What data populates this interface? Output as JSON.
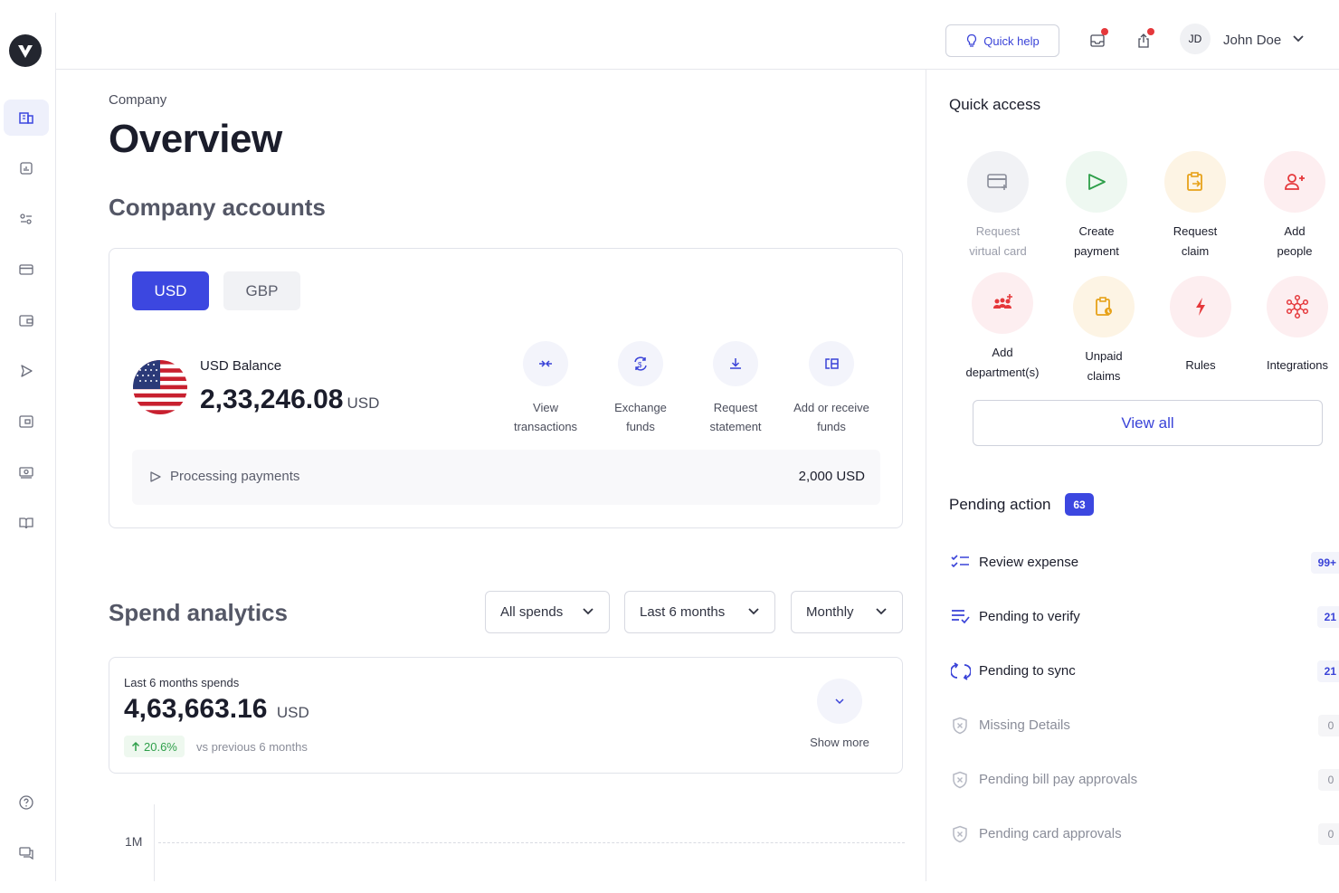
{
  "topbar": {
    "quick_help_label": "Quick help",
    "user_initials": "JD",
    "user_name": "John Doe",
    "notification_color": "#e5383b"
  },
  "sidebar": {
    "items": [
      {
        "name": "company",
        "icon": "building-icon",
        "active": true
      },
      {
        "name": "analytics",
        "icon": "chart-icon"
      },
      {
        "name": "controls",
        "icon": "sliders-icon"
      },
      {
        "name": "cards",
        "icon": "card-icon"
      },
      {
        "name": "wallet",
        "icon": "wallet-icon"
      },
      {
        "name": "payments",
        "icon": "send-icon"
      },
      {
        "name": "accounts",
        "icon": "wallet-alt-icon"
      },
      {
        "name": "cash",
        "icon": "cash-icon"
      },
      {
        "name": "docs",
        "icon": "book-icon"
      }
    ],
    "bottom": [
      {
        "name": "help",
        "icon": "help-icon"
      },
      {
        "name": "chat",
        "icon": "chat-icon"
      }
    ]
  },
  "main": {
    "breadcrumb": "Company",
    "title": "Overview",
    "accounts_title": "Company accounts",
    "currency_tabs": [
      "USD",
      "GBP"
    ],
    "balance_label": "USD Balance",
    "balance_amount": "2,33,246.08",
    "balance_currency": "USD",
    "actions": [
      {
        "line1": "View",
        "line2": "transactions",
        "icon": "arrows-in-icon"
      },
      {
        "line1": "Exchange",
        "line2": "funds",
        "icon": "exchange-icon"
      },
      {
        "line1": "Request",
        "line2": "statement",
        "icon": "download-icon"
      },
      {
        "line1": "Add or receive",
        "line2": "funds",
        "icon": "add-funds-icon"
      }
    ],
    "processing_label": "Processing payments",
    "processing_amount": "2,000 USD",
    "spend_title": "Spend analytics",
    "filters": {
      "spend_type": "All spends",
      "period": "Last 6 months",
      "granularity": "Monthly"
    },
    "spend_card": {
      "label": "Last 6 months spends",
      "amount": "4,63,663.16",
      "currency": "USD",
      "change": "20.6%",
      "change_note": "vs previous 6 months",
      "show_more": "Show more"
    },
    "chart": {
      "y_tick": "1M"
    }
  },
  "right": {
    "quick_access_title": "Quick access",
    "quick_access": [
      {
        "line1": "Request",
        "line2": "virtual card",
        "icon": "virtual-card-icon",
        "bg": "#f1f2f5",
        "color": "#8a8d99",
        "disabled": true
      },
      {
        "line1": "Create",
        "line2": "payment",
        "icon": "send-icon",
        "bg": "#eef8f1",
        "color": "#2e9f4a"
      },
      {
        "line1": "Request",
        "line2": "claim",
        "icon": "claim-icon",
        "bg": "#fdf4e4",
        "color": "#e7a21a"
      },
      {
        "line1": "Add",
        "line2": "people",
        "icon": "add-user-icon",
        "bg": "#fdeef0",
        "color": "#e5383b"
      },
      {
        "line1": "Add",
        "line2": "department(s)",
        "icon": "department-icon",
        "bg": "#fdeef0",
        "color": "#e5383b"
      },
      {
        "line1": "Unpaid",
        "line2": "claims",
        "icon": "unpaid-claims-icon",
        "bg": "#fdf4e4",
        "color": "#e7a21a"
      },
      {
        "line1": "Rules",
        "line2": "",
        "icon": "lightning-icon",
        "bg": "#fdeef0",
        "color": "#e5383b"
      },
      {
        "line1": "Integrations",
        "line2": "",
        "icon": "integrations-icon",
        "bg": "#fdeef0",
        "color": "#e5383b"
      }
    ],
    "view_all": "View all",
    "pending_title": "Pending action",
    "pending_count": "63",
    "pending": [
      {
        "label": "Review expense",
        "count": "99+",
        "icon": "checklist-icon",
        "muted": false
      },
      {
        "label": "Pending to verify",
        "count": "21",
        "icon": "list-check-icon",
        "muted": false
      },
      {
        "label": "Pending to sync",
        "count": "21",
        "icon": "sync-icon",
        "muted": false
      },
      {
        "label": "Missing Details",
        "count": "0",
        "icon": "shield-x-icon",
        "muted": true
      },
      {
        "label": "Pending bill pay approvals",
        "count": "0",
        "icon": "shield-x-icon",
        "muted": true
      },
      {
        "label": "Pending card approvals",
        "count": "0",
        "icon": "shield-x-icon",
        "muted": true
      }
    ],
    "accent": "#3c47e0"
  }
}
